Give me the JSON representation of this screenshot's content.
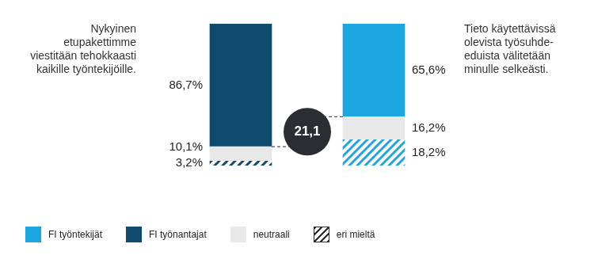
{
  "chart_data": {
    "type": "bar",
    "stacked": true,
    "categories": [
      [
        "Nykyinen",
        "etupakettimme",
        "viestitään tehokkaasti",
        "kaikille työntekijöille."
      ],
      [
        "Tieto käytettävissä",
        "olevista työsuhde-",
        "eduista välitetään",
        "minulle selkeästi."
      ]
    ],
    "series": [
      {
        "name": "FI työntekijät",
        "color": "#1ba6e2",
        "values": [
          null,
          65.6
        ],
        "value_labels": [
          null,
          "65,6%"
        ]
      },
      {
        "name": "FI työnantajat",
        "color": "#0d4a6e",
        "values": [
          86.7,
          null
        ],
        "value_labels": [
          "86,7%",
          null
        ]
      },
      {
        "name": "neutraali",
        "color": "#e8e8e8",
        "values": [
          10.1,
          16.2
        ],
        "value_labels": [
          "10,1%",
          "16,2%"
        ]
      },
      {
        "name": "eri mieltä",
        "color": "#2b2b2b",
        "colors": [
          "#0d4a6e",
          "#1ba6e2"
        ],
        "values": [
          3.2,
          18.2
        ],
        "value_labels": [
          "3,2%",
          "18,2%"
        ]
      }
    ],
    "ylim": [
      0,
      100
    ],
    "tick_labels": false,
    "grid": false,
    "data_labels": true,
    "legend": "bottom",
    "annotation": "21,1"
  }
}
